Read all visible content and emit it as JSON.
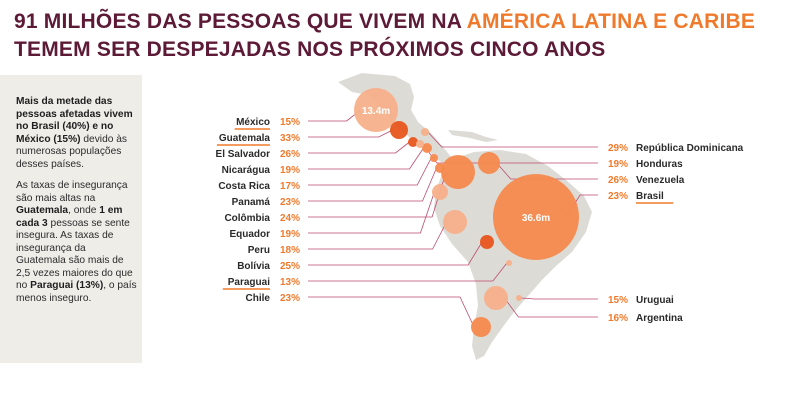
{
  "headline": {
    "part1": "91 MILHÕES DAS PESSOAS QUE VIVEM NA ",
    "highlight1": "AMÉRICA LATINA E CARIBE",
    "part2": " TEMEM SER DESPEJADAS NOS PRÓXIMOS CINCO ANOS"
  },
  "sidebar": {
    "p1_bold": "Mais da metade das pessoas afetadas vivem no Brasil (40%) e no México (15%)",
    "p1_rest": " devido às numerosas populações desses países.",
    "p2_a": "As taxas de insegurança são mais altas na ",
    "p2_b": "Guatemala",
    "p2_c": ", onde ",
    "p2_d": "1 em cada 3",
    "p2_e": " pessoas se sente insegura. As taxas de insegurança da Guatemala são mais de 2,5 vezes maiores do que no ",
    "p2_f": "Paraguai (13%)",
    "p2_g": ", o país menos inseguro."
  },
  "colors": {
    "title": "#5c1a36",
    "accent": "#f07a2c",
    "bubble_light": "#f7b08a",
    "bubble_mid": "#f68a4e",
    "bubble_dark": "#e8561d",
    "map": "#dcdbd6",
    "line": "#bf4a6e"
  },
  "chart_data": {
    "type": "bubble-map",
    "title": "91 MILHÕES DAS PESSOAS QUE VIVEM NA AMÉRICA LATINA E CARIBE TEMEM SER DESPEJADAS NOS PRÓXIMOS CINCO ANOS",
    "bubble_size_labels": [
      {
        "country": "México",
        "label": "13.4m"
      },
      {
        "country": "Brasil",
        "label": "36.6m"
      }
    ],
    "series": [
      {
        "country": "México",
        "value": 15,
        "label": "15%",
        "underline": true
      },
      {
        "country": "Guatemala",
        "value": 33,
        "label": "33%",
        "underline": true
      },
      {
        "country": "El Salvador",
        "value": 26,
        "label": "26%"
      },
      {
        "country": "Nicarágua",
        "value": 19,
        "label": "19%"
      },
      {
        "country": "Costa Rica",
        "value": 17,
        "label": "17%"
      },
      {
        "country": "Panamá",
        "value": 23,
        "label": "23%"
      },
      {
        "country": "Colômbia",
        "value": 24,
        "label": "24%"
      },
      {
        "country": "Equador",
        "value": 19,
        "label": "19%"
      },
      {
        "country": "Peru",
        "value": 18,
        "label": "18%"
      },
      {
        "country": "Bolívia",
        "value": 25,
        "label": "25%"
      },
      {
        "country": "Paraguai",
        "value": 13,
        "label": "13%",
        "underline": true
      },
      {
        "country": "Chile",
        "value": 23,
        "label": "23%"
      },
      {
        "country": "República Dominicana",
        "value": 29,
        "label": "29%"
      },
      {
        "country": "Honduras",
        "value": 19,
        "label": "19%"
      },
      {
        "country": "Venezuela",
        "value": 26,
        "label": "26%"
      },
      {
        "country": "Brasil",
        "value": 23,
        "label": "23%",
        "underline": true
      },
      {
        "country": "Uruguai",
        "value": 15,
        "label": "15%"
      },
      {
        "country": "Argentina",
        "value": 16,
        "label": "16%"
      }
    ]
  }
}
